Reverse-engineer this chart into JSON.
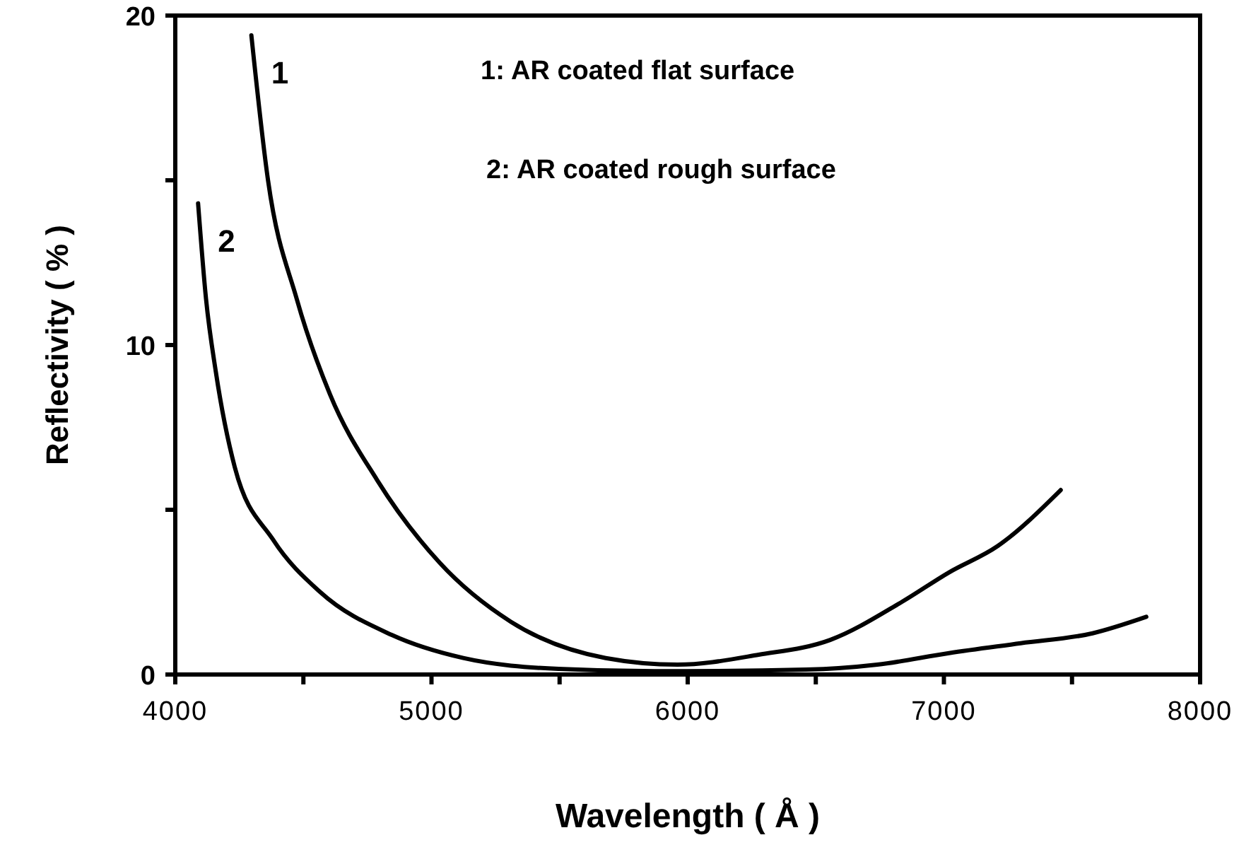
{
  "chart_data": {
    "type": "line",
    "xlabel": "Wavelength ( Å )",
    "ylabel": "Reflectivity ( % )",
    "annotations": [
      "1: AR coated flat surface",
      "2: AR coated rough surface"
    ],
    "xlim": [
      4000,
      8000
    ],
    "ylim": [
      0,
      20
    ],
    "xticks": [
      4000,
      {
        "value": 4500,
        "label": null
      },
      5000,
      {
        "value": 5500,
        "label": null
      },
      6000,
      {
        "value": 6500,
        "label": null
      },
      7000,
      {
        "value": 7500,
        "label": null
      },
      8000
    ],
    "yticks": [
      0,
      {
        "value": 5,
        "label": null
      },
      10,
      {
        "value": 15,
        "label": null
      },
      20
    ],
    "grid": false,
    "marker": "none",
    "line_style": "solid",
    "series": [
      {
        "name": "1",
        "color": "#000000",
        "x": [
          4297,
          4362,
          4474,
          4604,
          4788,
          5031,
          5310,
          5680,
          5960,
          6277,
          6556,
          6835,
          7020,
          7210,
          7456
        ],
        "values": [
          19.4,
          15.0,
          11.4,
          8.5,
          5.9,
          3.4,
          1.6,
          0.5,
          0.3,
          0.6,
          1.05,
          2.2,
          3.1,
          3.9,
          5.6
        ]
      },
      {
        "name": "2",
        "color": "#000000",
        "x": [
          4089,
          4120,
          4158,
          4232,
          4381,
          4566,
          4845,
          5124,
          5496,
          5870,
          6461,
          6740,
          7020,
          7300,
          7580,
          7790
        ],
        "values": [
          14.3,
          11.4,
          9.2,
          6.3,
          4.1,
          2.5,
          1.2,
          0.5,
          0.17,
          0.1,
          0.15,
          0.3,
          0.65,
          0.95,
          1.25,
          1.75
        ]
      }
    ]
  }
}
